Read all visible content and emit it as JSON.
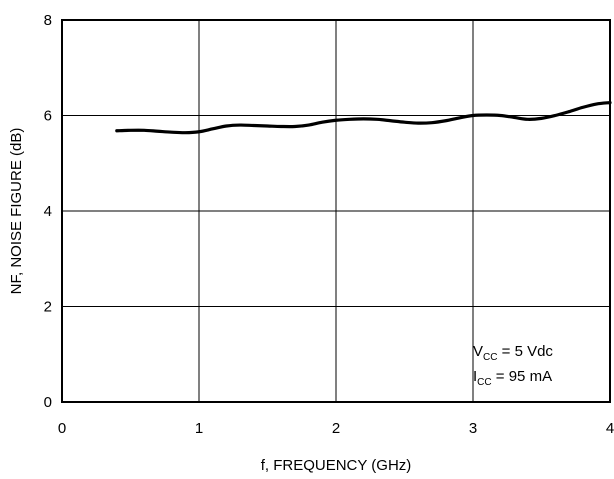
{
  "chart_data": {
    "type": "line",
    "xlabel": "f, FREQUENCY (GHz)",
    "ylabel": "NF, NOISE FIGURE (dB)",
    "xlim": [
      0,
      4
    ],
    "ylim": [
      0,
      8
    ],
    "x_ticks": [
      "0",
      "1",
      "2",
      "3",
      "4"
    ],
    "y_ticks": [
      "0",
      "2",
      "4",
      "6",
      "8"
    ],
    "grid": true,
    "series": [
      {
        "x": [
          0.4,
          0.5,
          0.6,
          0.7,
          0.8,
          0.9,
          1.0,
          1.1,
          1.2,
          1.3,
          1.4,
          1.5,
          1.6,
          1.7,
          1.8,
          1.9,
          2.0,
          2.1,
          2.2,
          2.3,
          2.4,
          2.5,
          2.6,
          2.7,
          2.8,
          2.9,
          3.0,
          3.1,
          3.2,
          3.3,
          3.4,
          3.5,
          3.6,
          3.7,
          3.8,
          3.9,
          4.0
        ],
        "y": [
          5.68,
          5.69,
          5.69,
          5.67,
          5.65,
          5.64,
          5.66,
          5.72,
          5.78,
          5.8,
          5.79,
          5.78,
          5.77,
          5.77,
          5.8,
          5.86,
          5.9,
          5.92,
          5.93,
          5.92,
          5.89,
          5.86,
          5.84,
          5.85,
          5.89,
          5.95,
          6.0,
          6.01,
          6.0,
          5.96,
          5.92,
          5.94,
          6.0,
          6.08,
          6.17,
          6.24,
          6.27
        ]
      }
    ],
    "annotations": [
      {
        "main": "V",
        "sub": "CC",
        "rest": " = 5 Vdc"
      },
      {
        "main": "I",
        "sub": "CC",
        "rest": " = 95 mA"
      }
    ]
  }
}
